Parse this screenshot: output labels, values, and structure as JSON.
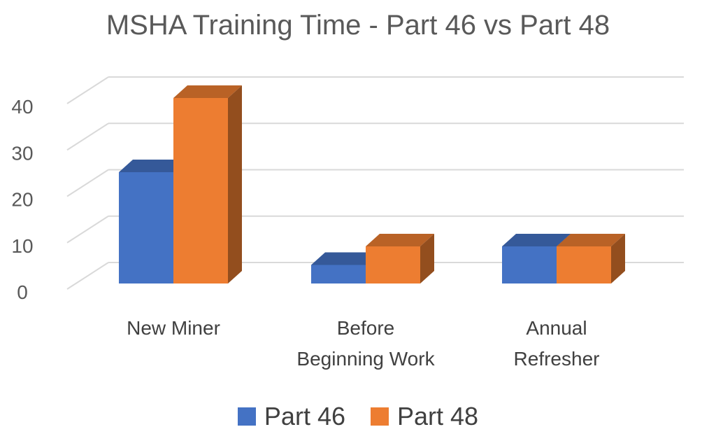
{
  "chart_data": {
    "type": "bar",
    "title": "MSHA Training Time - Part 46 vs Part 48",
    "xlabel": "",
    "ylabel": "",
    "ylim": [
      0,
      40
    ],
    "yticks": [
      0,
      10,
      20,
      30,
      40
    ],
    "categories": [
      [
        "New Miner"
      ],
      [
        "Before",
        "Beginning Work"
      ],
      [
        "Annual",
        "Refresher"
      ]
    ],
    "series": [
      {
        "name": "Part 46",
        "values": [
          24,
          4,
          8
        ],
        "color": "#4472C4"
      },
      {
        "name": "Part 48",
        "values": [
          40,
          8,
          8
        ],
        "color": "#ED7D31"
      }
    ],
    "legend": "bottom",
    "grid": true,
    "style": "3d"
  }
}
